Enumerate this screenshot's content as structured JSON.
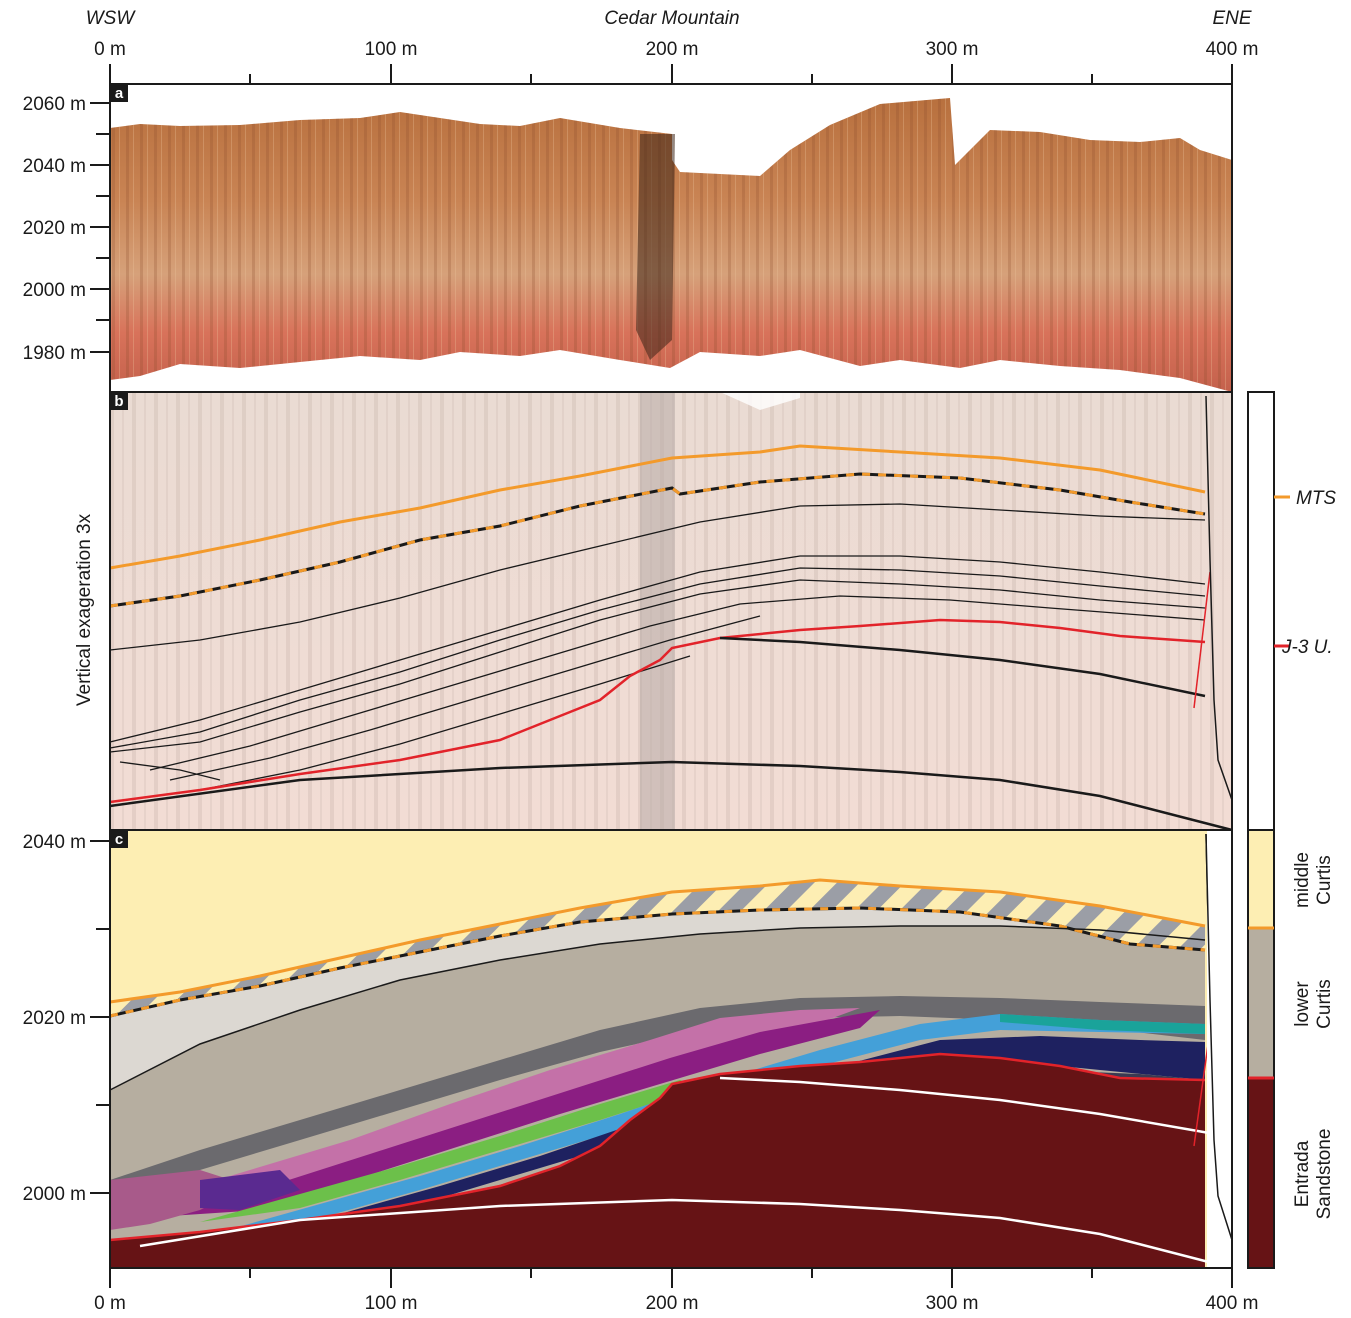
{
  "header": {
    "left_direction": "WSW",
    "center_title": "Cedar Mountain",
    "right_direction": "ENE"
  },
  "x_axis": {
    "ticks": [
      "0 m",
      "100 m",
      "200 m",
      "300 m",
      "400 m"
    ]
  },
  "panel_a": {
    "label": "a",
    "y_ticks": [
      "2060 m",
      "2040 m",
      "2020 m",
      "2000 m",
      "1980 m"
    ]
  },
  "panel_b": {
    "label": "b",
    "side_label": "Vertical exageration 3x",
    "legend": [
      {
        "label": "MTS",
        "color": "#f39a2b"
      },
      {
        "label": "J-3 U.",
        "color": "#e2232a"
      }
    ]
  },
  "panel_c": {
    "label": "c",
    "y_ticks": [
      "2040 m",
      "2020 m",
      "2000 m"
    ],
    "units": [
      {
        "line1": "middle",
        "line2": "Curtis",
        "color": "#fdeeb3"
      },
      {
        "line1": "lower",
        "line2": "Curtis",
        "color": "#b6aea0"
      },
      {
        "line1": "Entrada",
        "line2": "Sandstone",
        "color": "#661315"
      }
    ]
  },
  "colors": {
    "mts": "#f39a2b",
    "j3": "#e2232a",
    "middle_curtis": "#fdeeb3",
    "lower_curtis": "#b6aea0",
    "entrada": "#661315"
  }
}
